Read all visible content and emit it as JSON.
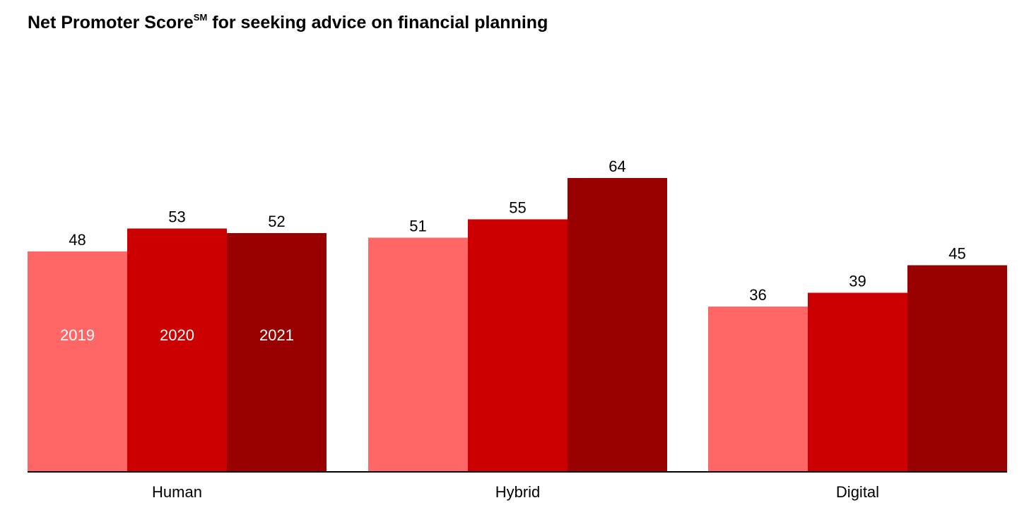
{
  "title": {
    "main": "Net Promoter Score",
    "superscript": "SM",
    "rest": " for seeking advice on financial planning"
  },
  "chart_data": {
    "type": "bar",
    "title": "Net Promoter Score℠ for seeking advice on financial planning",
    "categories": [
      "Human",
      "Hybrid",
      "Digital"
    ],
    "series": [
      {
        "name": "2019",
        "values": [
          48,
          51,
          36
        ],
        "color": "#ff6666"
      },
      {
        "name": "2020",
        "values": [
          53,
          55,
          39
        ],
        "color": "#cc0000"
      },
      {
        "name": "2021",
        "values": [
          52,
          64,
          45
        ],
        "color": "#990000"
      }
    ],
    "xlabel": "",
    "ylabel": "",
    "ylim": [
      0,
      70
    ],
    "grid": false,
    "legend": "inside-first-group-bars",
    "data_labels": true,
    "axis_color": "#000000",
    "label_color": "#000000",
    "legend_text_color": "#ffffff"
  }
}
